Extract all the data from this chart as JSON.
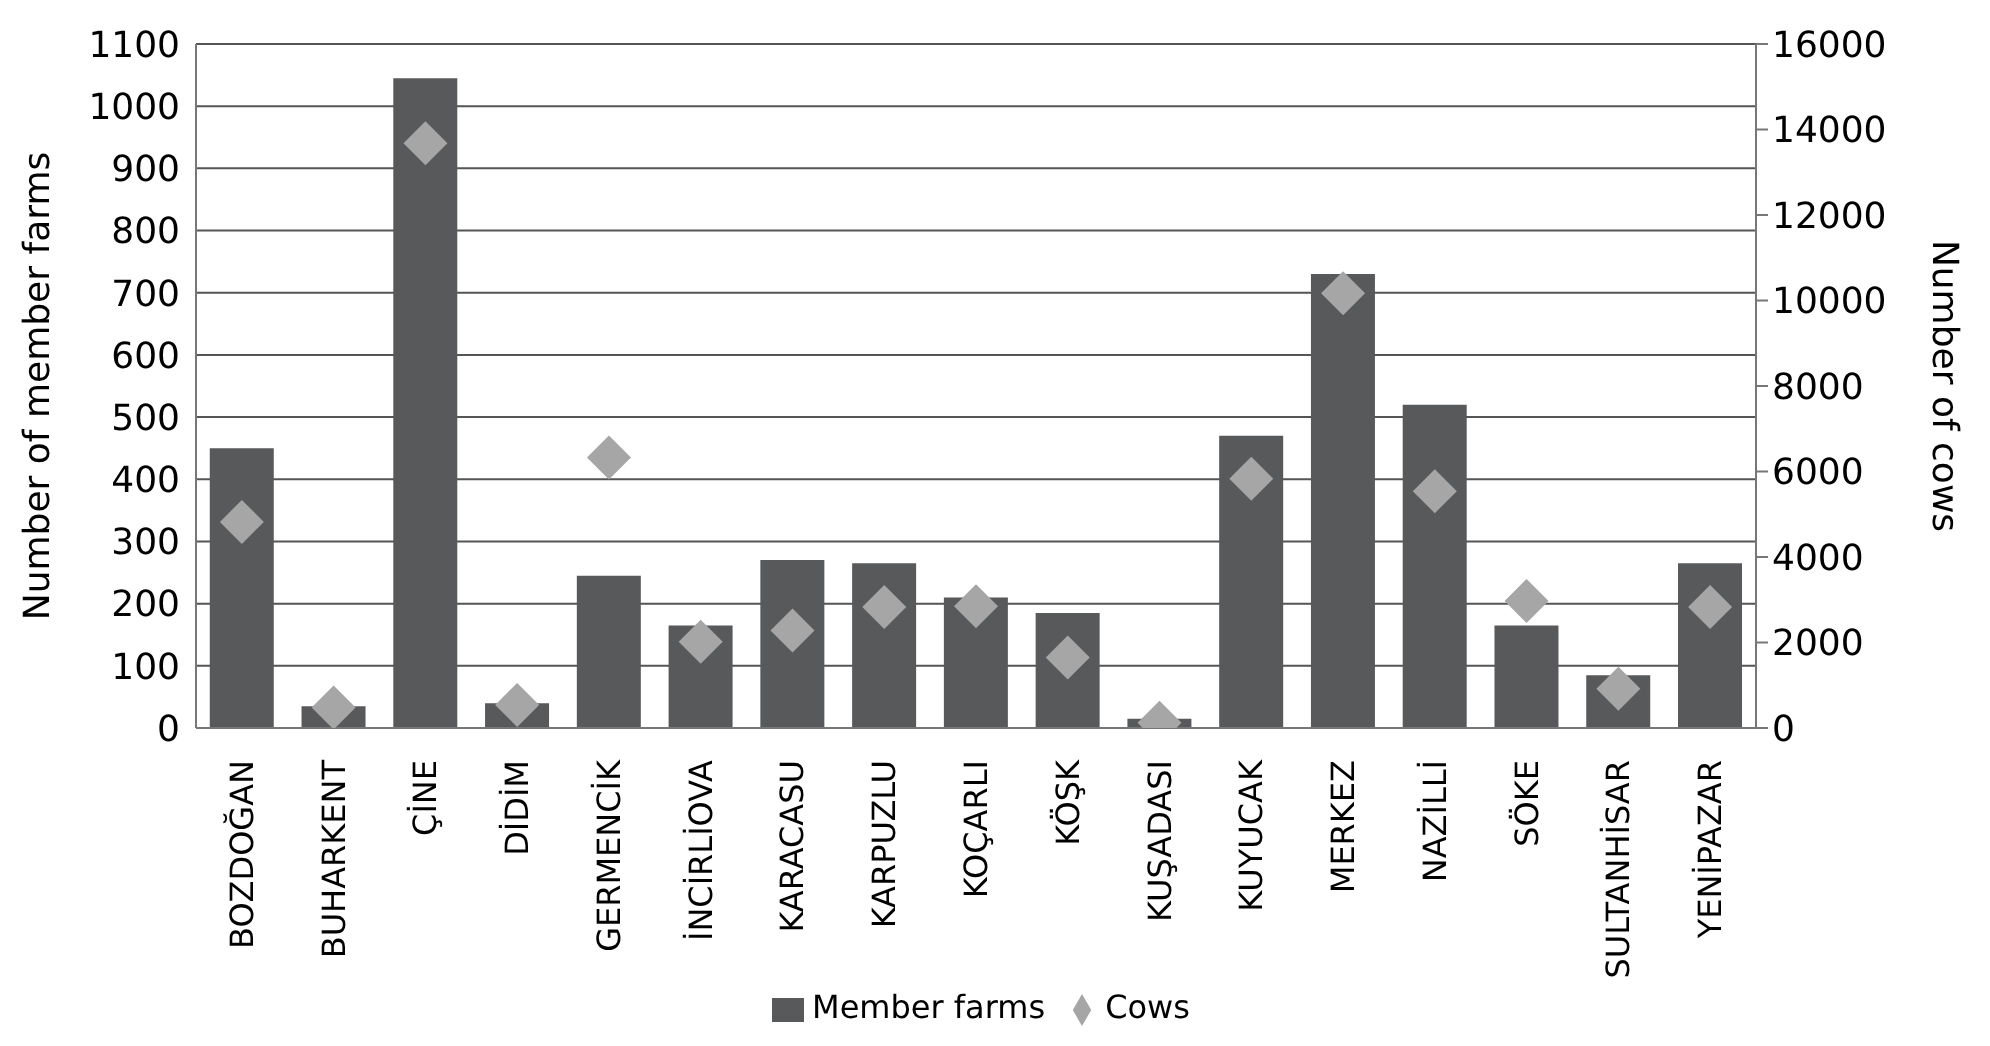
{
  "chart_data": {
    "type": "bar",
    "categories": [
      "BOZDOĞAN",
      "BUHARKENT",
      "ÇİNE",
      "DİDİM",
      "GERMENCİK",
      "İNCİRLİOVA",
      "KARACASU",
      "KARPUZLU",
      "KOÇARLI",
      "KÖŞK",
      "KUŞADASI",
      "KUYUCAK",
      "MERKEZ",
      "NAZİLLİ",
      "SÖKE",
      "SULTANHİSAR",
      "YENİPAZAR"
    ],
    "series": [
      {
        "name": "Member farms",
        "color": "#58595b",
        "values": [
          450,
          35,
          1045,
          40,
          245,
          165,
          270,
          265,
          210,
          185,
          15,
          470,
          730,
          520,
          165,
          85,
          265
        ]
      },
      {
        "name": "Cows",
        "type": "scatter",
        "axis": "y2",
        "marker": "diamond",
        "color": "#a6a6a6",
        "values": [
          4820,
          480,
          13680,
          540,
          6330,
          2020,
          2280,
          2830,
          2850,
          1650,
          120,
          5830,
          10170,
          5540,
          2970,
          920,
          2830
        ]
      }
    ],
    "ylabel": "Number of member farms",
    "y2label": "Number of cows",
    "ylim": [
      0,
      1100
    ],
    "yticks": [
      0,
      100,
      200,
      300,
      400,
      500,
      600,
      700,
      800,
      900,
      1000,
      1100
    ],
    "y2lim": [
      0,
      16000
    ],
    "y2ticks": [
      0,
      2000,
      4000,
      6000,
      8000,
      10000,
      12000,
      14000,
      16000
    ],
    "grid": "y",
    "legend": "bottom"
  }
}
